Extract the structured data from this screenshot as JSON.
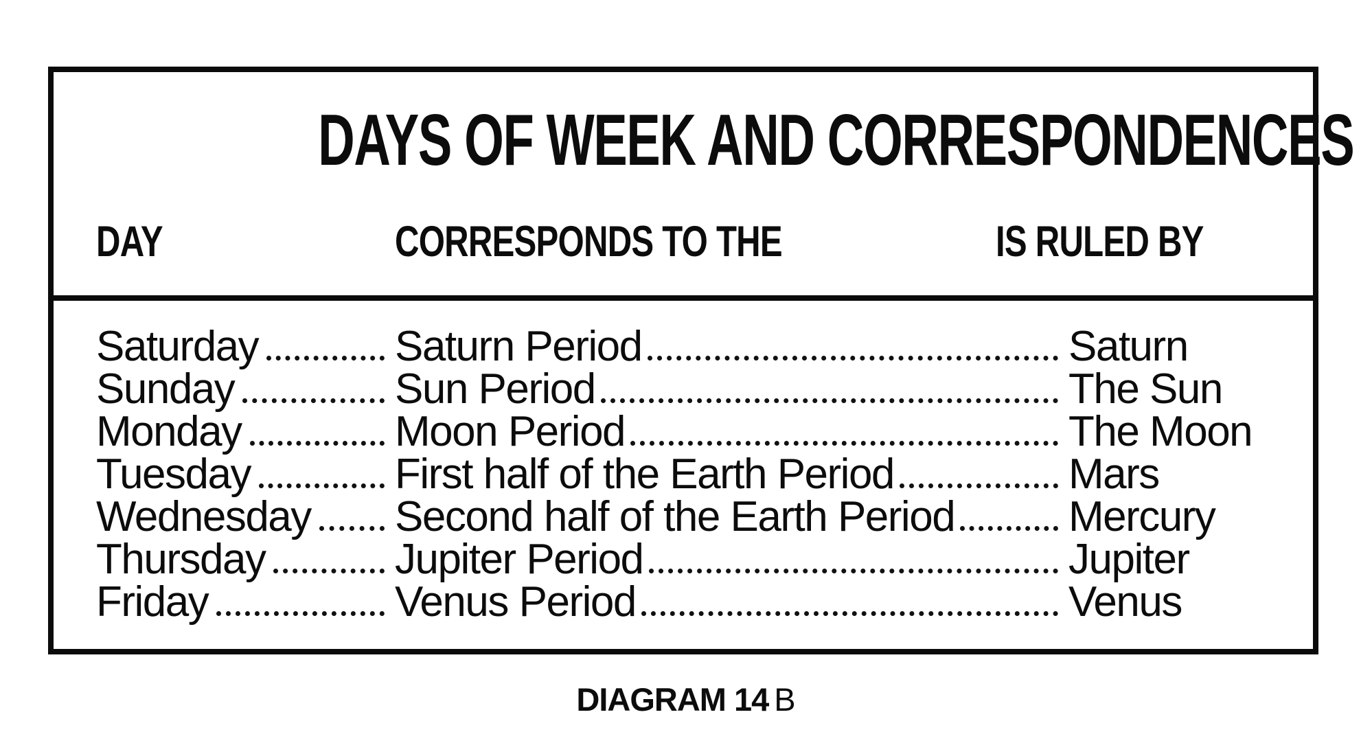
{
  "title": "DAYS OF WEEK AND CORRESPONDENCES",
  "table": {
    "headers": {
      "day": "DAY",
      "corresponds": "CORRESPONDS TO THE",
      "ruled_by": "IS RULED BY"
    },
    "rows": [
      {
        "day": "Saturday",
        "corresponds": "Saturn Period",
        "ruled_by": "Saturn"
      },
      {
        "day": "Sunday",
        "corresponds": "Sun Period",
        "ruled_by": "The Sun"
      },
      {
        "day": "Monday",
        "corresponds": "Moon Period",
        "ruled_by": "The Moon"
      },
      {
        "day": "Tuesday",
        "corresponds": "First half of the Earth Period",
        "ruled_by": "Mars"
      },
      {
        "day": "Wednesday",
        "corresponds": "Second half of the Earth Period",
        "ruled_by": "Mercury"
      },
      {
        "day": "Thursday",
        "corresponds": "Jupiter Period",
        "ruled_by": "Jupiter"
      },
      {
        "day": "Friday",
        "corresponds": "Venus Period",
        "ruled_by": "Venus"
      }
    ]
  },
  "caption": {
    "bold": "DIAGRAM 14",
    "light": "B"
  },
  "colors": {
    "ink": "#0c0c0c",
    "paper": "#ffffff"
  }
}
